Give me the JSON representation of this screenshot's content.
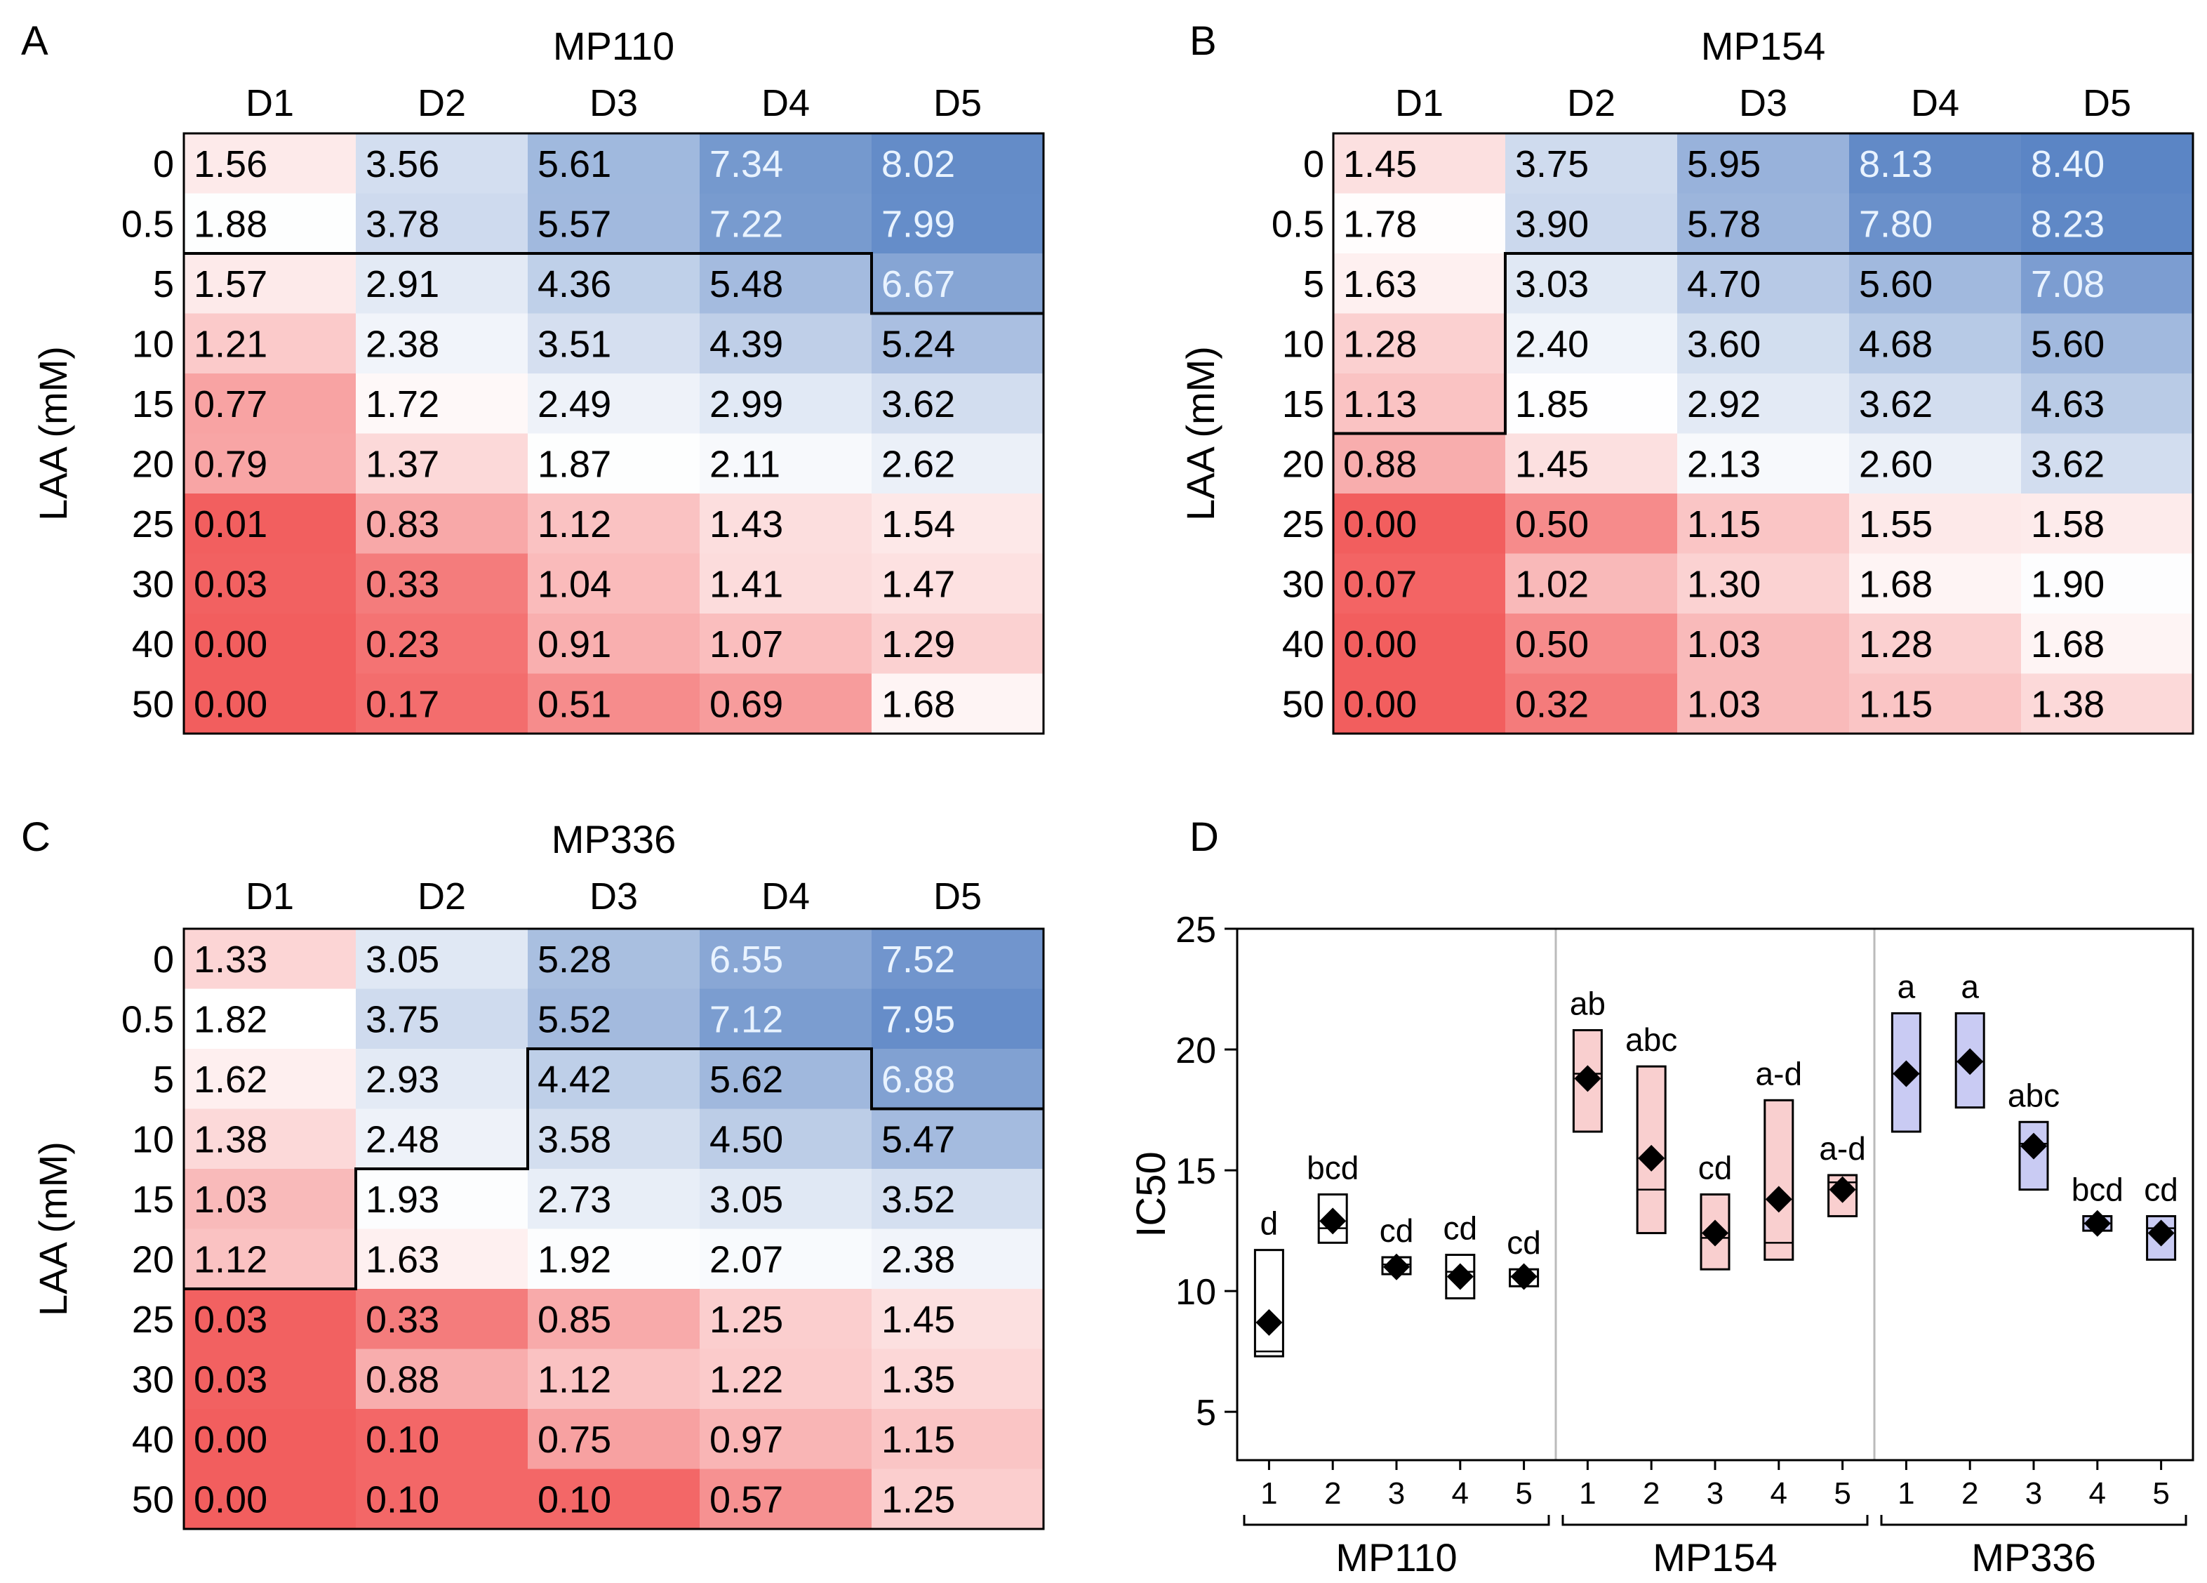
{
  "chart_data": [
    {
      "type": "heatmap",
      "panel": "A",
      "title": "MP110",
      "columns": [
        "D1",
        "D2",
        "D3",
        "D4",
        "D5"
      ],
      "rows": [
        "0",
        "0.5",
        "5",
        "10",
        "15",
        "20",
        "25",
        "30",
        "40",
        "50"
      ],
      "ylabel": "LAA (mM)",
      "values": [
        [
          "1.56",
          "3.56",
          "5.61",
          "7.34",
          "8.02"
        ],
        [
          "1.88",
          "3.78",
          "5.57",
          "7.22",
          "7.99"
        ],
        [
          "1.57",
          "2.91",
          "4.36",
          "5.48",
          "6.67"
        ],
        [
          "1.21",
          "2.38",
          "3.51",
          "4.39",
          "5.24"
        ],
        [
          "0.77",
          "1.72",
          "2.49",
          "2.99",
          "3.62"
        ],
        [
          "0.79",
          "1.37",
          "1.87",
          "2.11",
          "2.62"
        ],
        [
          "0.01",
          "0.83",
          "1.12",
          "1.43",
          "1.54"
        ],
        [
          "0.03",
          "0.33",
          "1.04",
          "1.41",
          "1.47"
        ],
        [
          "0.00",
          "0.23",
          "0.91",
          "1.07",
          "1.29"
        ],
        [
          "0.00",
          "0.17",
          "0.51",
          "0.69",
          "1.68"
        ]
      ],
      "outline_rows_per_column": [
        2,
        2,
        2,
        2,
        3
      ]
    },
    {
      "type": "heatmap",
      "panel": "B",
      "title": "MP154",
      "columns": [
        "D1",
        "D2",
        "D3",
        "D4",
        "D5"
      ],
      "rows": [
        "0",
        "0.5",
        "5",
        "10",
        "15",
        "20",
        "25",
        "30",
        "40",
        "50"
      ],
      "ylabel": "LAA (mM)",
      "values": [
        [
          "1.45",
          "3.75",
          "5.95",
          "8.13",
          "8.40"
        ],
        [
          "1.78",
          "3.90",
          "5.78",
          "7.80",
          "8.23"
        ],
        [
          "1.63",
          "3.03",
          "4.70",
          "5.60",
          "7.08"
        ],
        [
          "1.28",
          "2.40",
          "3.60",
          "4.68",
          "5.60"
        ],
        [
          "1.13",
          "1.85",
          "2.92",
          "3.62",
          "4.63"
        ],
        [
          "0.88",
          "1.45",
          "2.13",
          "2.60",
          "3.62"
        ],
        [
          "0.00",
          "0.50",
          "1.15",
          "1.55",
          "1.58"
        ],
        [
          "0.07",
          "1.02",
          "1.30",
          "1.68",
          "1.90"
        ],
        [
          "0.00",
          "0.50",
          "1.03",
          "1.28",
          "1.68"
        ],
        [
          "0.00",
          "0.32",
          "1.03",
          "1.15",
          "1.38"
        ]
      ],
      "outline_rows_per_column": [
        5,
        2,
        2,
        2,
        2
      ]
    },
    {
      "type": "heatmap",
      "panel": "C",
      "title": "MP336",
      "columns": [
        "D1",
        "D2",
        "D3",
        "D4",
        "D5"
      ],
      "rows": [
        "0",
        "0.5",
        "5",
        "10",
        "15",
        "20",
        "25",
        "30",
        "40",
        "50"
      ],
      "ylabel": "LAA (mM)",
      "values": [
        [
          "1.33",
          "3.05",
          "5.28",
          "6.55",
          "7.52"
        ],
        [
          "1.82",
          "3.75",
          "5.52",
          "7.12",
          "7.95"
        ],
        [
          "1.62",
          "2.93",
          "4.42",
          "5.62",
          "6.88"
        ],
        [
          "1.38",
          "2.48",
          "3.58",
          "4.50",
          "5.47"
        ],
        [
          "1.03",
          "1.93",
          "2.73",
          "3.05",
          "3.52"
        ],
        [
          "1.12",
          "1.63",
          "1.92",
          "2.07",
          "2.38"
        ],
        [
          "0.03",
          "0.33",
          "0.85",
          "1.25",
          "1.45"
        ],
        [
          "0.03",
          "0.88",
          "1.12",
          "1.22",
          "1.35"
        ],
        [
          "0.00",
          "0.10",
          "0.75",
          "0.97",
          "1.15"
        ],
        [
          "0.00",
          "0.10",
          "0.10",
          "0.57",
          "1.25"
        ]
      ],
      "outline_rows_per_column": [
        6,
        4,
        2,
        2,
        3
      ]
    },
    {
      "type": "box",
      "panel": "D",
      "ylabel": "IC50",
      "ylim": [
        3,
        25
      ],
      "yticks": [
        5,
        10,
        15,
        20,
        25
      ],
      "groups": [
        {
          "name": "MP110",
          "color": "#ffffff",
          "boxes": [
            {
              "x": "1",
              "low": 7.3,
              "high": 11.7,
              "median": 7.5,
              "mean": 8.7,
              "letter": "d"
            },
            {
              "x": "2",
              "low": 12.0,
              "high": 14.0,
              "median": 12.6,
              "mean": 12.9,
              "letter": "bcd"
            },
            {
              "x": "3",
              "low": 10.7,
              "high": 11.4,
              "median": 11.1,
              "mean": 11.0,
              "letter": "cd"
            },
            {
              "x": "4",
              "low": 9.7,
              "high": 11.5,
              "median": 10.8,
              "mean": 10.6,
              "letter": "cd"
            },
            {
              "x": "5",
              "low": 10.2,
              "high": 10.9,
              "median": 10.6,
              "mean": 10.6,
              "letter": "cd"
            }
          ]
        },
        {
          "name": "MP154",
          "color": "#f9cfcf",
          "boxes": [
            {
              "x": "1",
              "low": 16.6,
              "high": 20.8,
              "median": 19.0,
              "mean": 18.8,
              "letter": "ab"
            },
            {
              "x": "2",
              "low": 12.4,
              "high": 19.3,
              "median": 14.2,
              "mean": 15.5,
              "letter": "abc"
            },
            {
              "x": "3",
              "low": 10.9,
              "high": 14.0,
              "median": 12.2,
              "mean": 12.4,
              "letter": "cd"
            },
            {
              "x": "4",
              "low": 11.3,
              "high": 17.9,
              "median": 12.0,
              "mean": 13.8,
              "letter": "a-d"
            },
            {
              "x": "5",
              "low": 13.1,
              "high": 14.8,
              "median": 14.5,
              "mean": 14.2,
              "letter": "a-d"
            }
          ]
        },
        {
          "name": "MP336",
          "color": "#c9cbf3",
          "boxes": [
            {
              "x": "1",
              "low": 16.6,
              "high": 21.5,
              "median": 19.0,
              "mean": 19.0,
              "letter": "a"
            },
            {
              "x": "2",
              "low": 17.6,
              "high": 21.5,
              "median": 19.5,
              "mean": 19.5,
              "letter": "a"
            },
            {
              "x": "3",
              "low": 14.2,
              "high": 17.0,
              "median": 16.1,
              "mean": 16.0,
              "letter": "abc"
            },
            {
              "x": "4",
              "low": 12.5,
              "high": 13.1,
              "median": 12.8,
              "mean": 12.8,
              "letter": "bcd"
            },
            {
              "x": "5",
              "low": 11.3,
              "high": 13.1,
              "median": 12.6,
              "mean": 12.4,
              "letter": "cd"
            }
          ]
        }
      ]
    }
  ],
  "panel_letters": [
    "A",
    "B",
    "C",
    "D"
  ],
  "colors": {
    "low": "#f25e5e",
    "mid": "#ffffff",
    "high": "#5b85c5",
    "text_dark": "#000000",
    "text_light": "#e9f3ff",
    "separator": "#bbbbbb"
  }
}
